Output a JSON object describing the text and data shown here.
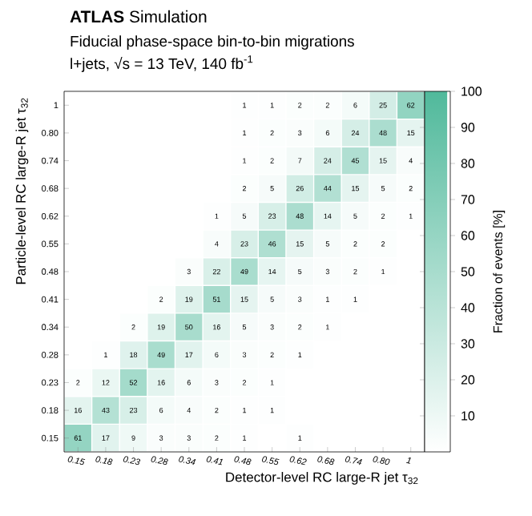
{
  "chart_data": {
    "type": "heatmap",
    "title": "**ATLAS** Simulation",
    "subtitle": "Fiducial phase-space bin-to-bin migrations",
    "annotations": [
      "l+jets, √s = 13 TeV, 140 fb$^{-1}$"
    ],
    "xlabel": "Detector-level RC large-R jet τ$_{32}$",
    "ylabel": "Particle-level RC large-R jet τ$_{32}$",
    "clabel": "Fraction of events [%]",
    "categories": [
      "0.15",
      "0.18",
      "0.23",
      "0.28",
      "0.34",
      "0.41",
      "0.48",
      "0.55",
      "0.62",
      "0.68",
      "0.74",
      "0.80",
      "1"
    ],
    "y_categories": [
      "1",
      "0.80",
      "0.74",
      "0.68",
      "0.62",
      "0.55",
      "0.48",
      "0.41",
      "0.34",
      "0.28",
      "0.23",
      "0.18",
      "0.15"
    ],
    "cells": [
      [
        null,
        null,
        null,
        null,
        null,
        null,
        1,
        1,
        2,
        2,
        6,
        25,
        62
      ],
      [
        null,
        null,
        null,
        null,
        null,
        null,
        1,
        2,
        3,
        6,
        24,
        48,
        15
      ],
      [
        null,
        null,
        null,
        null,
        null,
        null,
        1,
        2,
        7,
        24,
        45,
        15,
        4
      ],
      [
        null,
        null,
        null,
        null,
        null,
        null,
        2,
        5,
        26,
        44,
        15,
        5,
        2
      ],
      [
        null,
        null,
        null,
        null,
        null,
        1,
        5,
        23,
        48,
        14,
        5,
        2,
        1
      ],
      [
        null,
        null,
        null,
        null,
        null,
        4,
        23,
        46,
        15,
        5,
        2,
        2,
        null
      ],
      [
        null,
        null,
        null,
        null,
        3,
        22,
        49,
        14,
        5,
        3,
        2,
        1,
        null
      ],
      [
        null,
        null,
        null,
        2,
        19,
        51,
        15,
        5,
        3,
        1,
        1,
        null,
        null
      ],
      [
        null,
        null,
        2,
        19,
        50,
        16,
        5,
        3,
        2,
        1,
        null,
        null,
        null
      ],
      [
        null,
        1,
        18,
        49,
        17,
        6,
        3,
        2,
        1,
        null,
        null,
        null,
        null
      ],
      [
        2,
        12,
        52,
        16,
        6,
        3,
        2,
        1,
        null,
        null,
        null,
        null,
        null
      ],
      [
        16,
        43,
        23,
        6,
        4,
        2,
        1,
        1,
        null,
        null,
        null,
        null,
        null
      ],
      [
        61,
        17,
        9,
        3,
        3,
        2,
        1,
        null,
        1,
        null,
        null,
        null,
        null
      ]
    ],
    "clim": [
      0,
      100
    ],
    "cticks": [
      10,
      20,
      30,
      40,
      50,
      60,
      70,
      80,
      90,
      100
    ],
    "data_labels": true
  }
}
